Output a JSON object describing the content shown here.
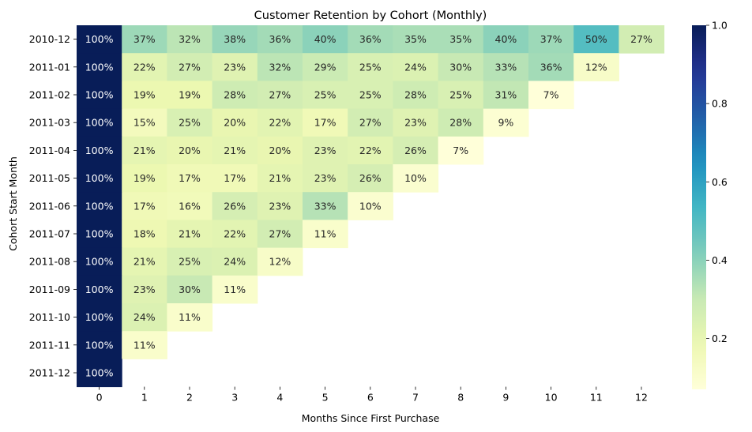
{
  "chart_data": {
    "type": "heatmap",
    "title": "Customer Retention by Cohort (Monthly)",
    "xlabel": "Months Since First Purchase",
    "ylabel": "Cohort Start Month",
    "x": [
      "0",
      "1",
      "2",
      "3",
      "4",
      "5",
      "6",
      "7",
      "8",
      "9",
      "10",
      "11",
      "12"
    ],
    "y": [
      "2010-12",
      "2011-01",
      "2011-02",
      "2011-03",
      "2011-04",
      "2011-05",
      "2011-06",
      "2011-07",
      "2011-08",
      "2011-09",
      "2011-10",
      "2011-11",
      "2011-12"
    ],
    "values": [
      [
        1.0,
        0.37,
        0.32,
        0.38,
        0.36,
        0.4,
        0.36,
        0.35,
        0.35,
        0.4,
        0.37,
        0.5,
        0.27
      ],
      [
        1.0,
        0.22,
        0.27,
        0.23,
        0.32,
        0.29,
        0.25,
        0.24,
        0.3,
        0.33,
        0.36,
        0.12
      ],
      [
        1.0,
        0.19,
        0.19,
        0.28,
        0.27,
        0.25,
        0.25,
        0.28,
        0.25,
        0.31,
        0.07
      ],
      [
        1.0,
        0.15,
        0.25,
        0.2,
        0.22,
        0.17,
        0.27,
        0.23,
        0.28,
        0.09
      ],
      [
        1.0,
        0.21,
        0.2,
        0.21,
        0.2,
        0.23,
        0.22,
        0.26,
        0.07
      ],
      [
        1.0,
        0.19,
        0.17,
        0.17,
        0.21,
        0.23,
        0.26,
        0.1
      ],
      [
        1.0,
        0.17,
        0.16,
        0.26,
        0.23,
        0.33,
        0.1
      ],
      [
        1.0,
        0.18,
        0.21,
        0.22,
        0.27,
        0.11
      ],
      [
        1.0,
        0.21,
        0.25,
        0.24,
        0.12
      ],
      [
        1.0,
        0.23,
        0.3,
        0.11
      ],
      [
        1.0,
        0.24,
        0.11
      ],
      [
        1.0,
        0.11
      ],
      [
        1.0
      ]
    ],
    "annotation_format": "percent",
    "colormap": "YlGnBu",
    "colorbar": {
      "ticks": [
        0.2,
        0.4,
        0.6,
        0.8,
        1.0
      ],
      "tick_labels": [
        "0.2",
        "0.4",
        "0.6",
        "0.8",
        "1.0"
      ],
      "range": [
        0.07,
        1.0
      ]
    },
    "grid": false,
    "legend": "colorbar-right"
  }
}
